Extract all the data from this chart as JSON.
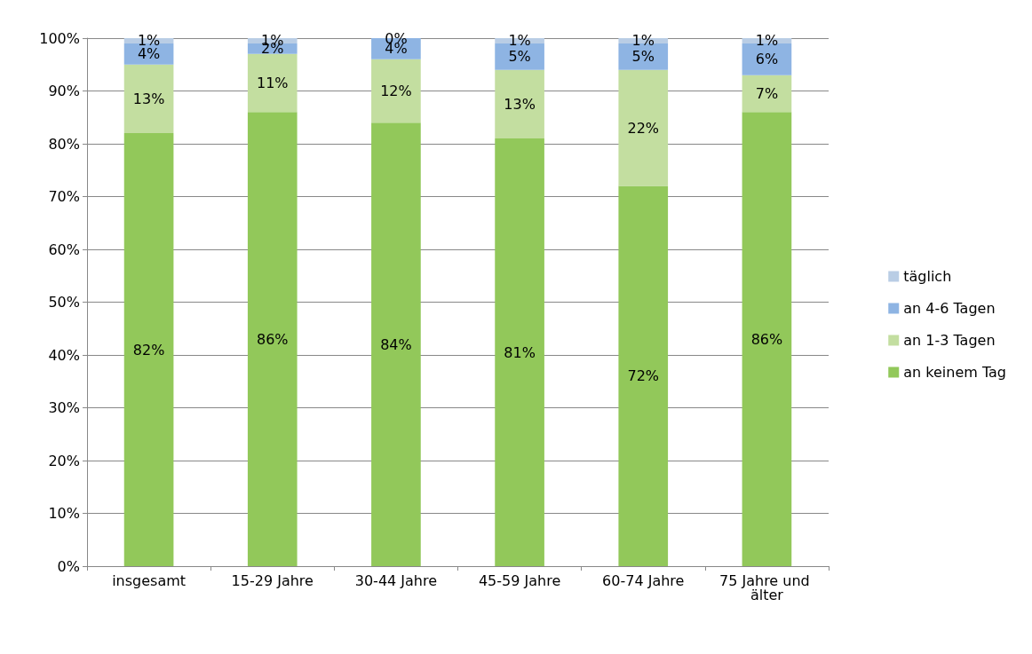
{
  "chart_data": {
    "type": "bar",
    "stacked": true,
    "categories": [
      "insgesamt",
      "15-29 Jahre",
      "30-44 Jahre",
      "45-59 Jahre",
      "60-74 Jahre",
      "75 Jahre und älter"
    ],
    "series": [
      {
        "name": "an keinem Tag",
        "color": "#92c85a",
        "values": [
          82,
          86,
          84,
          81,
          72,
          86
        ],
        "value_labels": [
          "82%",
          "86%",
          "84%",
          "81%",
          "72%",
          "86%"
        ]
      },
      {
        "name": "an 1-3 Tagen",
        "color": "#c3dea0",
        "values": [
          13,
          11,
          12,
          13,
          22,
          7
        ],
        "value_labels": [
          "13%",
          "11%",
          "12%",
          "13%",
          "22%",
          "7%"
        ]
      },
      {
        "name": "an 4-6 Tagen",
        "color": "#8eb4e3",
        "values": [
          4,
          2,
          4,
          5,
          5,
          6
        ],
        "value_labels": [
          "4%",
          "2%",
          "4%",
          "5%",
          "5%",
          "6%"
        ]
      },
      {
        "name": "täglich",
        "color": "#b9cde5",
        "values": [
          1,
          1,
          0,
          1,
          1,
          1
        ],
        "value_labels": [
          "1%",
          "1%",
          "0%",
          "1%",
          "1%",
          "1%"
        ]
      }
    ],
    "ylim": [
      0,
      100
    ],
    "yticks": [
      {
        "value": 0,
        "label": "0%"
      },
      {
        "value": 10,
        "label": "10%"
      },
      {
        "value": 20,
        "label": "20%"
      },
      {
        "value": 30,
        "label": "30%"
      },
      {
        "value": 40,
        "label": "40%"
      },
      {
        "value": 50,
        "label": "50%"
      },
      {
        "value": 60,
        "label": "60%"
      },
      {
        "value": 70,
        "label": "70%"
      },
      {
        "value": 80,
        "label": "80%"
      },
      {
        "value": 90,
        "label": "90%"
      },
      {
        "value": 100,
        "label": "100%"
      }
    ],
    "grid": "y",
    "legend": "right"
  }
}
